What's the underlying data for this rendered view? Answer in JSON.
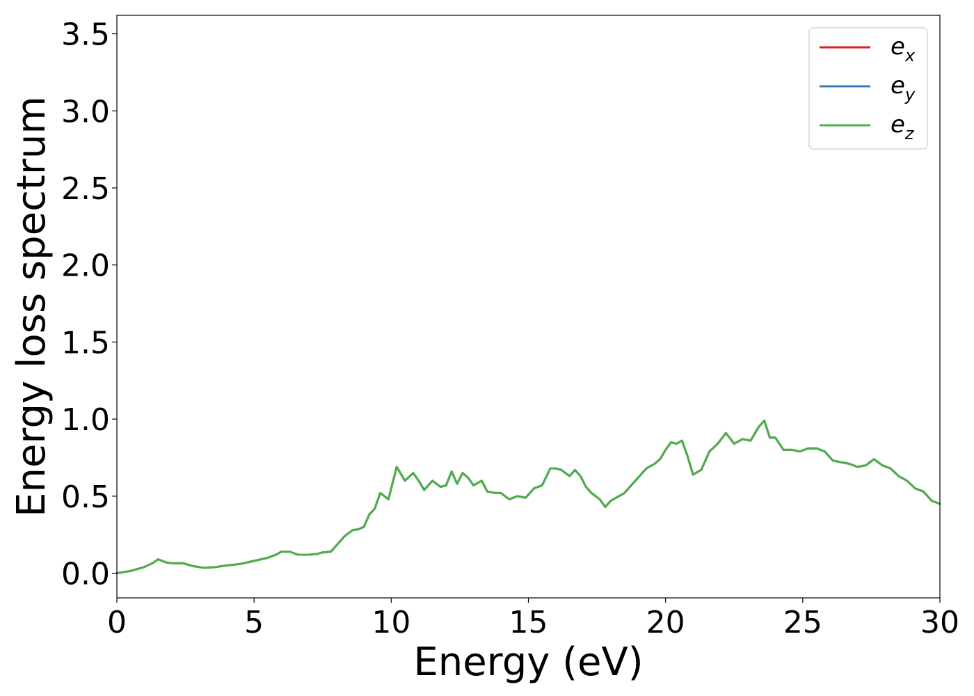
{
  "chart_data": {
    "type": "line",
    "xlabel": "Energy (eV)",
    "ylabel": "Energy loss spectrum",
    "xlim": [
      0,
      30
    ],
    "ylim": [
      -0.16,
      3.62
    ],
    "x_ticks": [
      0,
      5,
      10,
      15,
      20,
      25,
      30
    ],
    "x_tick_labels": [
      "0",
      "5",
      "10",
      "15",
      "20",
      "25",
      "30"
    ],
    "y_ticks": [
      0.0,
      0.5,
      1.0,
      1.5,
      2.0,
      2.5,
      3.0,
      3.5
    ],
    "y_tick_labels": [
      "0.0",
      "0.5",
      "1.0",
      "1.5",
      "2.0",
      "2.5",
      "3.0",
      "3.5"
    ],
    "grid": false,
    "legend_position": "top-right",
    "x": [
      0,
      0.5,
      1.0,
      1.3,
      1.5,
      1.8,
      2.0,
      2.4,
      2.8,
      3.2,
      3.6,
      4.0,
      4.5,
      5.0,
      5.5,
      5.8,
      6.0,
      6.3,
      6.6,
      7.0,
      7.3,
      7.5,
      7.8,
      8.0,
      8.3,
      8.6,
      8.8,
      9.0,
      9.2,
      9.4,
      9.6,
      9.9,
      10.2,
      10.5,
      10.8,
      11.0,
      11.2,
      11.5,
      11.8,
      12.0,
      12.2,
      12.4,
      12.6,
      12.8,
      13.0,
      13.3,
      13.5,
      13.8,
      14.0,
      14.3,
      14.6,
      14.9,
      15.2,
      15.5,
      15.8,
      16.0,
      16.2,
      16.5,
      16.7,
      16.9,
      17.1,
      17.3,
      17.6,
      17.8,
      18.0,
      18.2,
      18.5,
      18.8,
      19.0,
      19.3,
      19.6,
      19.8,
      20.0,
      20.2,
      20.4,
      20.6,
      20.8,
      21.0,
      21.3,
      21.6,
      21.9,
      22.2,
      22.5,
      22.8,
      23.1,
      23.4,
      23.6,
      23.8,
      24.0,
      24.3,
      24.6,
      24.9,
      25.2,
      25.5,
      25.8,
      26.1,
      26.4,
      26.7,
      27.0,
      27.3,
      27.6,
      27.9,
      28.2,
      28.5,
      28.8,
      29.1,
      29.4,
      29.7,
      30.0
    ],
    "series": [
      {
        "name": "e_x",
        "label_main": "e",
        "label_sub": "x",
        "color": "#e41a1c",
        "values": [
          0.0,
          0.015,
          0.04,
          0.065,
          0.09,
          0.07,
          0.065,
          0.065,
          0.045,
          0.035,
          0.04,
          0.05,
          0.06,
          0.08,
          0.1,
          0.12,
          0.14,
          0.14,
          0.12,
          0.12,
          0.125,
          0.135,
          0.14,
          0.18,
          0.24,
          0.28,
          0.285,
          0.3,
          0.38,
          0.42,
          0.52,
          0.48,
          0.69,
          0.6,
          0.65,
          0.6,
          0.54,
          0.6,
          0.56,
          0.57,
          0.66,
          0.58,
          0.65,
          0.62,
          0.57,
          0.6,
          0.53,
          0.52,
          0.52,
          0.48,
          0.5,
          0.49,
          0.55,
          0.57,
          0.68,
          0.68,
          0.67,
          0.63,
          0.67,
          0.63,
          0.56,
          0.52,
          0.48,
          0.43,
          0.47,
          0.49,
          0.52,
          0.58,
          0.62,
          0.68,
          0.71,
          0.74,
          0.8,
          0.85,
          0.84,
          0.86,
          0.76,
          0.64,
          0.67,
          0.79,
          0.84,
          0.91,
          0.84,
          0.87,
          0.86,
          0.95,
          0.99,
          0.88,
          0.88,
          0.8,
          0.8,
          0.79,
          0.81,
          0.81,
          0.79,
          0.73,
          0.72,
          0.71,
          0.69,
          0.7,
          0.74,
          0.7,
          0.68,
          0.63,
          0.6,
          0.55,
          0.53,
          0.47,
          0.45
        ]
      },
      {
        "name": "e_y",
        "label_main": "e",
        "label_sub": "y",
        "color": "#377eb8",
        "values": [
          0.0,
          0.015,
          0.04,
          0.065,
          0.09,
          0.07,
          0.065,
          0.065,
          0.045,
          0.035,
          0.04,
          0.05,
          0.06,
          0.08,
          0.1,
          0.12,
          0.14,
          0.14,
          0.12,
          0.12,
          0.125,
          0.135,
          0.14,
          0.18,
          0.24,
          0.28,
          0.285,
          0.3,
          0.38,
          0.42,
          0.52,
          0.48,
          0.69,
          0.6,
          0.65,
          0.6,
          0.54,
          0.6,
          0.56,
          0.57,
          0.66,
          0.58,
          0.65,
          0.62,
          0.57,
          0.6,
          0.53,
          0.52,
          0.52,
          0.48,
          0.5,
          0.49,
          0.55,
          0.57,
          0.68,
          0.68,
          0.67,
          0.63,
          0.67,
          0.63,
          0.56,
          0.52,
          0.48,
          0.43,
          0.47,
          0.49,
          0.52,
          0.58,
          0.62,
          0.68,
          0.71,
          0.74,
          0.8,
          0.85,
          0.84,
          0.86,
          0.76,
          0.64,
          0.67,
          0.79,
          0.84,
          0.91,
          0.84,
          0.87,
          0.86,
          0.95,
          0.99,
          0.88,
          0.88,
          0.8,
          0.8,
          0.79,
          0.81,
          0.81,
          0.79,
          0.73,
          0.72,
          0.71,
          0.69,
          0.7,
          0.74,
          0.7,
          0.68,
          0.63,
          0.6,
          0.55,
          0.53,
          0.47,
          0.45
        ]
      },
      {
        "name": "e_z",
        "label_main": "e",
        "label_sub": "z",
        "color": "#4daf4a",
        "values": [
          0.0,
          0.015,
          0.04,
          0.065,
          0.09,
          0.07,
          0.065,
          0.065,
          0.045,
          0.035,
          0.04,
          0.05,
          0.06,
          0.08,
          0.1,
          0.12,
          0.14,
          0.14,
          0.12,
          0.12,
          0.125,
          0.135,
          0.14,
          0.18,
          0.24,
          0.28,
          0.285,
          0.3,
          0.38,
          0.42,
          0.52,
          0.48,
          0.69,
          0.6,
          0.65,
          0.6,
          0.54,
          0.6,
          0.56,
          0.57,
          0.66,
          0.58,
          0.65,
          0.62,
          0.57,
          0.6,
          0.53,
          0.52,
          0.52,
          0.48,
          0.5,
          0.49,
          0.55,
          0.57,
          0.68,
          0.68,
          0.67,
          0.63,
          0.67,
          0.63,
          0.56,
          0.52,
          0.48,
          0.43,
          0.47,
          0.49,
          0.52,
          0.58,
          0.62,
          0.68,
          0.71,
          0.74,
          0.8,
          0.85,
          0.84,
          0.86,
          0.76,
          0.64,
          0.67,
          0.79,
          0.84,
          0.91,
          0.84,
          0.87,
          0.86,
          0.95,
          0.99,
          0.88,
          0.88,
          0.8,
          0.8,
          0.79,
          0.81,
          0.81,
          0.79,
          0.73,
          0.72,
          0.71,
          0.69,
          0.7,
          0.74,
          0.7,
          0.68,
          0.63,
          0.6,
          0.55,
          0.53,
          0.47,
          0.45
        ]
      }
    ]
  }
}
